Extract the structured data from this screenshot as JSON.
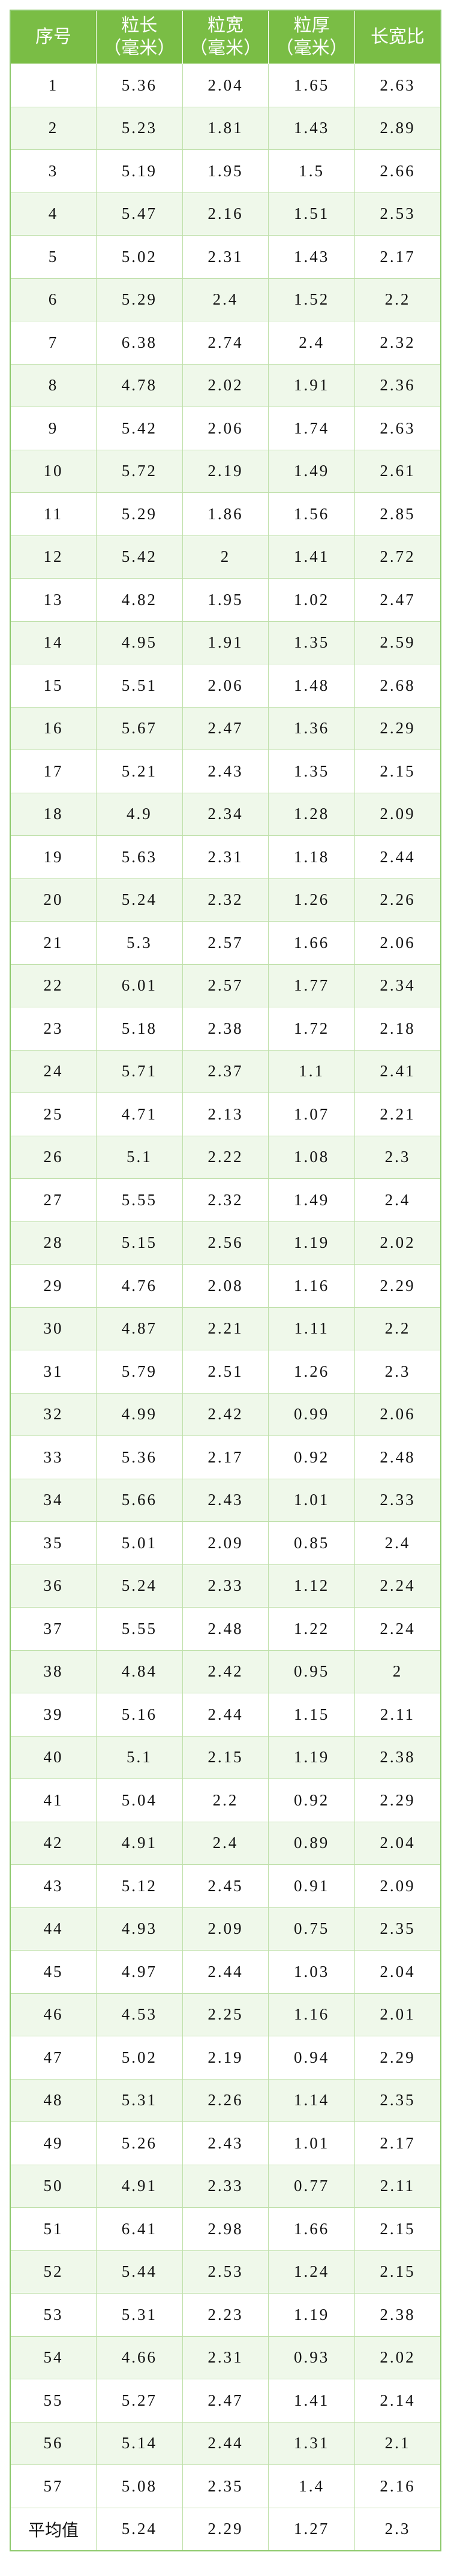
{
  "table": {
    "headers": [
      {
        "line1": "序号",
        "line2": ""
      },
      {
        "line1": "粒长",
        "line2": "（毫米）"
      },
      {
        "line1": "粒宽",
        "line2": "（毫米）"
      },
      {
        "line1": "粒厚",
        "line2": "（毫米）"
      },
      {
        "line1": "长宽比",
        "line2": ""
      }
    ],
    "rows": [
      [
        "1",
        "5.36",
        "2.04",
        "1.65",
        "2.63"
      ],
      [
        "2",
        "5.23",
        "1.81",
        "1.43",
        "2.89"
      ],
      [
        "3",
        "5.19",
        "1.95",
        "1.5",
        "2.66"
      ],
      [
        "4",
        "5.47",
        "2.16",
        "1.51",
        "2.53"
      ],
      [
        "5",
        "5.02",
        "2.31",
        "1.43",
        "2.17"
      ],
      [
        "6",
        "5.29",
        "2.4",
        "1.52",
        "2.2"
      ],
      [
        "7",
        "6.38",
        "2.74",
        "2.4",
        "2.32"
      ],
      [
        "8",
        "4.78",
        "2.02",
        "1.91",
        "2.36"
      ],
      [
        "9",
        "5.42",
        "2.06",
        "1.74",
        "2.63"
      ],
      [
        "10",
        "5.72",
        "2.19",
        "1.49",
        "2.61"
      ],
      [
        "11",
        "5.29",
        "1.86",
        "1.56",
        "2.85"
      ],
      [
        "12",
        "5.42",
        "2",
        "1.41",
        "2.72"
      ],
      [
        "13",
        "4.82",
        "1.95",
        "1.02",
        "2.47"
      ],
      [
        "14",
        "4.95",
        "1.91",
        "1.35",
        "2.59"
      ],
      [
        "15",
        "5.51",
        "2.06",
        "1.48",
        "2.68"
      ],
      [
        "16",
        "5.67",
        "2.47",
        "1.36",
        "2.29"
      ],
      [
        "17",
        "5.21",
        "2.43",
        "1.35",
        "2.15"
      ],
      [
        "18",
        "4.9",
        "2.34",
        "1.28",
        "2.09"
      ],
      [
        "19",
        "5.63",
        "2.31",
        "1.18",
        "2.44"
      ],
      [
        "20",
        "5.24",
        "2.32",
        "1.26",
        "2.26"
      ],
      [
        "21",
        "5.3",
        "2.57",
        "1.66",
        "2.06"
      ],
      [
        "22",
        "6.01",
        "2.57",
        "1.77",
        "2.34"
      ],
      [
        "23",
        "5.18",
        "2.38",
        "1.72",
        "2.18"
      ],
      [
        "24",
        "5.71",
        "2.37",
        "1.1",
        "2.41"
      ],
      [
        "25",
        "4.71",
        "2.13",
        "1.07",
        "2.21"
      ],
      [
        "26",
        "5.1",
        "2.22",
        "1.08",
        "2.3"
      ],
      [
        "27",
        "5.55",
        "2.32",
        "1.49",
        "2.4"
      ],
      [
        "28",
        "5.15",
        "2.56",
        "1.19",
        "2.02"
      ],
      [
        "29",
        "4.76",
        "2.08",
        "1.16",
        "2.29"
      ],
      [
        "30",
        "4.87",
        "2.21",
        "1.11",
        "2.2"
      ],
      [
        "31",
        "5.79",
        "2.51",
        "1.26",
        "2.3"
      ],
      [
        "32",
        "4.99",
        "2.42",
        "0.99",
        "2.06"
      ],
      [
        "33",
        "5.36",
        "2.17",
        "0.92",
        "2.48"
      ],
      [
        "34",
        "5.66",
        "2.43",
        "1.01",
        "2.33"
      ],
      [
        "35",
        "5.01",
        "2.09",
        "0.85",
        "2.4"
      ],
      [
        "36",
        "5.24",
        "2.33",
        "1.12",
        "2.24"
      ],
      [
        "37",
        "5.55",
        "2.48",
        "1.22",
        "2.24"
      ],
      [
        "38",
        "4.84",
        "2.42",
        "0.95",
        "2"
      ],
      [
        "39",
        "5.16",
        "2.44",
        "1.15",
        "2.11"
      ],
      [
        "40",
        "5.1",
        "2.15",
        "1.19",
        "2.38"
      ],
      [
        "41",
        "5.04",
        "2.2",
        "0.92",
        "2.29"
      ],
      [
        "42",
        "4.91",
        "2.4",
        "0.89",
        "2.04"
      ],
      [
        "43",
        "5.12",
        "2.45",
        "0.91",
        "2.09"
      ],
      [
        "44",
        "4.93",
        "2.09",
        "0.75",
        "2.35"
      ],
      [
        "45",
        "4.97",
        "2.44",
        "1.03",
        "2.04"
      ],
      [
        "46",
        "4.53",
        "2.25",
        "1.16",
        "2.01"
      ],
      [
        "47",
        "5.02",
        "2.19",
        "0.94",
        "2.29"
      ],
      [
        "48",
        "5.31",
        "2.26",
        "1.14",
        "2.35"
      ],
      [
        "49",
        "5.26",
        "2.43",
        "1.01",
        "2.17"
      ],
      [
        "50",
        "4.91",
        "2.33",
        "0.77",
        "2.11"
      ],
      [
        "51",
        "6.41",
        "2.98",
        "1.66",
        "2.15"
      ],
      [
        "52",
        "5.44",
        "2.53",
        "1.24",
        "2.15"
      ],
      [
        "53",
        "5.31",
        "2.23",
        "1.19",
        "2.38"
      ],
      [
        "54",
        "4.66",
        "2.31",
        "0.93",
        "2.02"
      ],
      [
        "55",
        "5.27",
        "2.47",
        "1.41",
        "2.14"
      ],
      [
        "56",
        "5.14",
        "2.44",
        "1.31",
        "2.1"
      ],
      [
        "57",
        "5.08",
        "2.35",
        "1.4",
        "2.16"
      ]
    ],
    "average": [
      "平均值",
      "5.24",
      "2.29",
      "1.27",
      "2.3"
    ]
  },
  "colors": {
    "header_bg": "#7abd45",
    "alt_row_bg": "#eff8ea",
    "border": "#bfe0aa"
  }
}
